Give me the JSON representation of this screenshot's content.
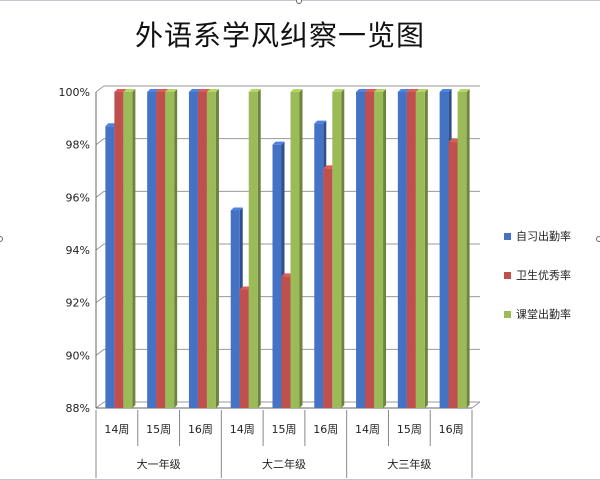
{
  "chart_data": {
    "type": "bar",
    "title": "外语系学风纠察一览图",
    "categories": [
      "14周",
      "15周",
      "16周",
      "14周",
      "15周",
      "16周",
      "14周",
      "15周",
      "16周"
    ],
    "groups": [
      {
        "label": "大一年级",
        "span": 3
      },
      {
        "label": "大二年级",
        "span": 3
      },
      {
        "label": "大三年级",
        "span": 3
      }
    ],
    "series": [
      {
        "name": "自习出勤率",
        "color": "#4472c4",
        "values": [
          98.7,
          100,
          100,
          95.5,
          98.0,
          98.8,
          100,
          100,
          100
        ]
      },
      {
        "name": "卫生优秀率",
        "color": "#c0504d",
        "values": [
          100,
          100,
          100,
          92.5,
          93.0,
          97.1,
          100,
          100,
          98.1
        ]
      },
      {
        "name": "课堂出勤率",
        "color": "#9bbb59",
        "values": [
          100,
          100,
          100,
          100,
          100,
          100,
          100,
          100,
          100
        ]
      }
    ],
    "ylim": [
      88,
      100
    ],
    "yticks": [
      88,
      90,
      92,
      94,
      96,
      98,
      100
    ],
    "ytick_labels": [
      "88%",
      "90%",
      "92%",
      "94%",
      "96%",
      "98%",
      "100%"
    ],
    "grid": true,
    "legend_position": "right",
    "xlabel": "",
    "ylabel": ""
  }
}
